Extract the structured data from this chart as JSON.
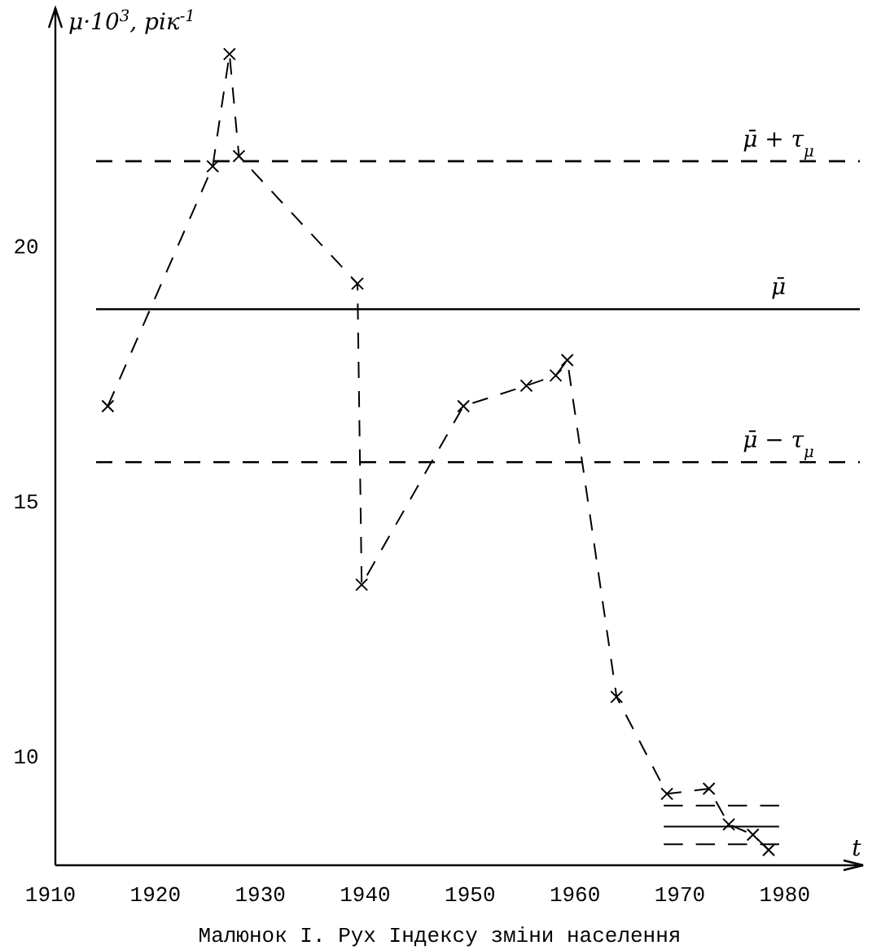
{
  "chart_data": {
    "type": "line",
    "title": "Малюнок І. Рух Індексу зміни населення",
    "xlabel": "t",
    "ylabel": "μ·10$^{3}$, рік$^{-1}$",
    "xlim": [
      1910,
      1987
    ],
    "ylim": [
      7.9,
      24.7
    ],
    "xticks": [
      1910,
      1920,
      1930,
      1940,
      1950,
      1960,
      1970,
      1980
    ],
    "yticks": [
      10,
      15,
      20
    ],
    "grid": false,
    "marker": "cross",
    "line_style": "dashed",
    "series": [
      {
        "color": "#000000",
        "x": [
          1915,
          1925,
          1926.6,
          1927.5,
          1938.8,
          1939.2,
          1948.9,
          1954.9,
          1957.7,
          1958.8,
          1963.5,
          1968.3,
          1972.3,
          1974.2,
          1976.5,
          1978
        ],
        "values": [
          16.9,
          21.6,
          23.8,
          21.8,
          19.3,
          13.4,
          16.9,
          17.3,
          17.5,
          17.8,
          11.2,
          9.3,
          9.4,
          8.7,
          8.5,
          8.2
        ]
      },
      {
        "color": "#000000",
        "type": "line",
        "marker": "none",
        "line_style": "dashed",
        "x": [
          1968,
          1979
        ],
        "values": [
          9.07,
          9.07
        ]
      },
      {
        "color": "#000000",
        "type": "line",
        "marker": "none",
        "line_style": "solid",
        "x": [
          1968,
          1979
        ],
        "values": [
          8.66,
          8.66
        ]
      },
      {
        "color": "#000000",
        "type": "line",
        "marker": "none",
        "line_style": "dashed",
        "x": [
          1968,
          1979
        ],
        "values": [
          8.31,
          8.31
        ]
      }
    ],
    "ref_lines": [
      {
        "axis": "y",
        "value": 21.7,
        "label": "μ̄ + τ$_{μ}$",
        "line_style": "dashed",
        "color": "#000000"
      },
      {
        "axis": "y",
        "value": 18.8,
        "label": "μ̄",
        "line_style": "solid",
        "color": "#000000"
      },
      {
        "axis": "y",
        "value": 15.8,
        "label": "μ̄ − τ$_{μ}$",
        "line_style": "dashed",
        "color": "#000000"
      }
    ]
  }
}
